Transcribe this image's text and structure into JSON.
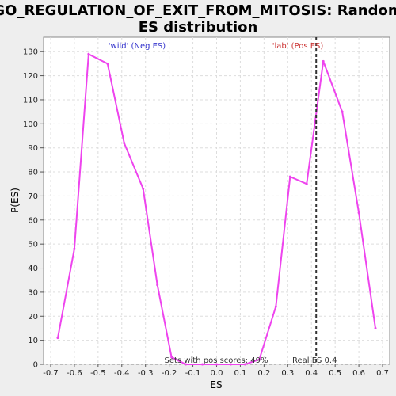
{
  "chart_data": {
    "type": "line",
    "title_line1": "GO_REGULATION_OF_EXIT_FROM_MITOSIS: Random",
    "title_line2": "ES distribution",
    "xlabel": "ES",
    "ylabel": "P(ES)",
    "xlim": [
      -0.73,
      0.73
    ],
    "ylim": [
      0,
      136
    ],
    "xticks": [
      -0.7,
      -0.6,
      -0.5,
      -0.4,
      -0.3,
      -0.2,
      -0.1,
      0.0,
      0.1,
      0.2,
      0.3,
      0.4,
      0.5,
      0.6,
      0.7
    ],
    "xtick_labels": [
      "-0.7",
      "-0.6",
      "-0.5",
      "-0.4",
      "-0.3",
      "-0.2",
      "-0.1",
      "0.0",
      "0.1",
      "0.2",
      "0.3",
      "0.4",
      "0.5",
      "0.6",
      "0.7"
    ],
    "yticks": [
      0,
      10,
      20,
      30,
      40,
      50,
      60,
      70,
      80,
      90,
      100,
      110,
      120,
      130
    ],
    "ytick_labels": [
      "0",
      "10",
      "20",
      "30",
      "40",
      "50",
      "60",
      "70",
      "80",
      "90",
      "100",
      "110",
      "120",
      "130"
    ],
    "grid": true,
    "series": [
      {
        "color": "#ee44ee",
        "points": [
          [
            -0.67,
            11
          ],
          [
            -0.6,
            48
          ],
          [
            -0.54,
            129
          ],
          [
            -0.46,
            125
          ],
          [
            -0.39,
            92
          ],
          [
            -0.31,
            73
          ],
          [
            -0.25,
            33
          ],
          [
            -0.19,
            3
          ],
          [
            -0.13,
            0
          ],
          [
            -0.06,
            0
          ],
          [
            0.0,
            0
          ],
          [
            0.06,
            0
          ],
          [
            0.12,
            0
          ],
          [
            0.18,
            2
          ],
          [
            0.25,
            24
          ],
          [
            0.31,
            78
          ],
          [
            0.38,
            75
          ],
          [
            0.45,
            126
          ],
          [
            0.53,
            105
          ],
          [
            0.6,
            63
          ],
          [
            0.67,
            15
          ]
        ]
      }
    ],
    "real_es": {
      "value": 0.42,
      "label": "Real ES 0.4"
    },
    "annotations": {
      "neg_label": "'wild' (Neg ES)",
      "neg_color": "#3333cc",
      "pos_label": "'lab' (Pos ES)",
      "pos_color": "#cc3333",
      "pos_scores_label": "Sets with pos scores: 49%"
    }
  }
}
